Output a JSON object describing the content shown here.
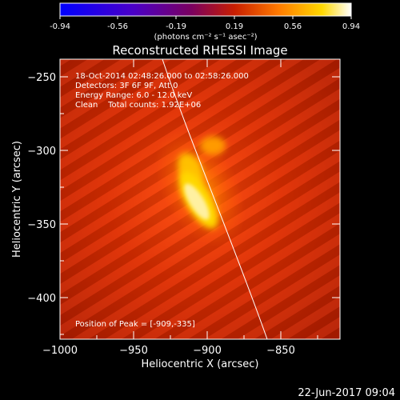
{
  "colorbar": {
    "ticks": [
      "-0.94",
      "-0.56",
      "-0.19",
      "0.19",
      "0.56",
      "0.94"
    ],
    "unit_label": "(photons cm⁻² s⁻¹ asec⁻²)"
  },
  "plot": {
    "title": "Reconstructed RHESSI Image",
    "xlabel": "Heliocentric X (arcsec)",
    "ylabel": "Heliocentric Y (arcsec)",
    "xticks": [
      "−1000",
      "−950",
      "−900",
      "−850"
    ],
    "yticks": [
      "−250",
      "−300",
      "−350",
      "−400"
    ],
    "info_lines": [
      "18-Oct-2014 02:48:26.000 to 02:58:26.000",
      "Detectors: 3F 6F 9F, Att 0",
      "Energy Range: 6.0 - 12.0 keV",
      "Clean    Total counts: 1.92E+06"
    ],
    "peak_label": "Position of Peak = [-909,-335]"
  },
  "footer": {
    "timestamp": "22-Jun-2017 09:04"
  },
  "colors": {
    "background": "#000000",
    "axes": "#ffffff"
  }
}
